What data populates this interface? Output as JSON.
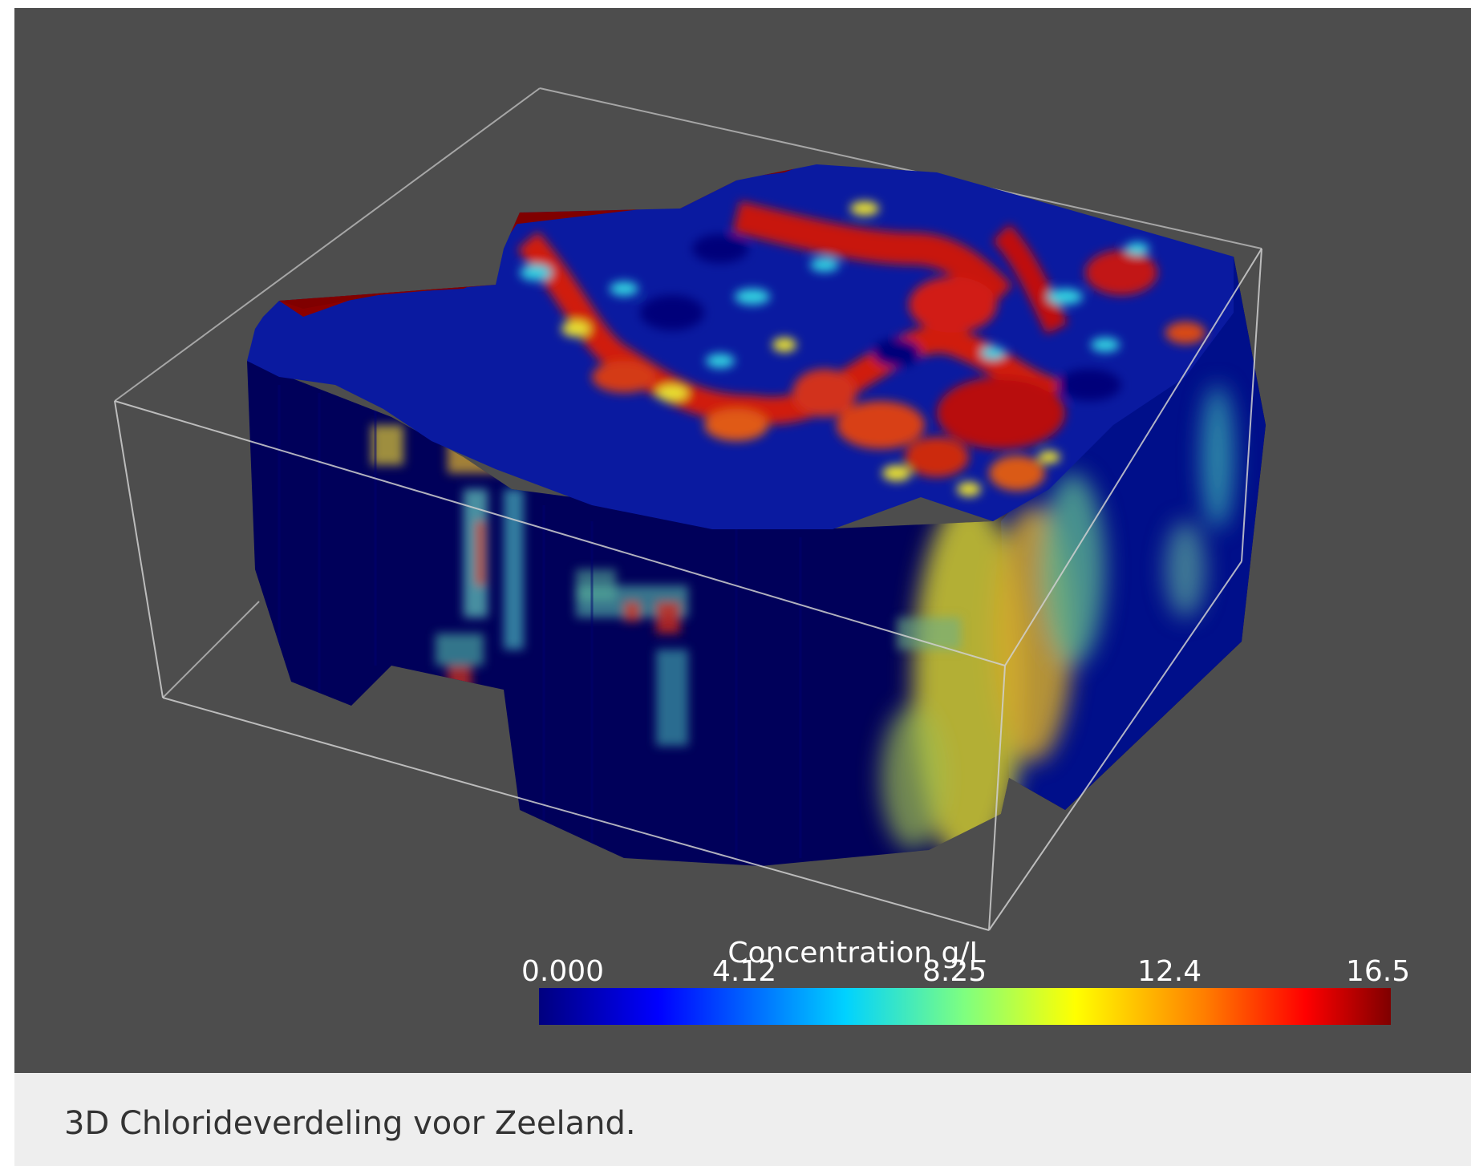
{
  "figure": {
    "caption": "3D Chlorideverdeling voor Zeeland.",
    "colorbar": {
      "title": "Concentration g/L",
      "ticks": [
        "0.000",
        "4.12",
        "8.25",
        "12.4",
        "16.5"
      ],
      "colormap": [
        "#00007f",
        "#0000ff",
        "#00d2ff",
        "#7fff7f",
        "#ffff00",
        "#ff7f00",
        "#ff0000",
        "#7f0000"
      ]
    },
    "background_color": "#4d4d4d",
    "caption_background": "#eeeeee"
  }
}
